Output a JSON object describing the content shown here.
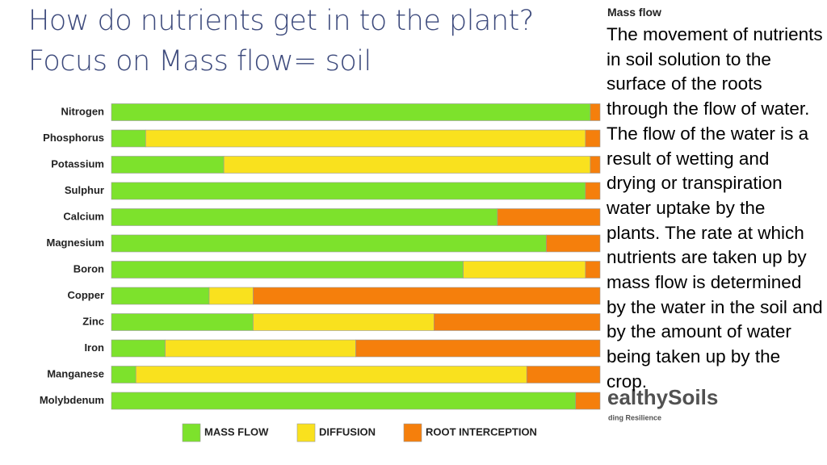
{
  "title_lines": [
    "How do nutrients get in to the plant?",
    "Focus on Mass flow= soil"
  ],
  "side_note": {
    "heading": "Mass flow",
    "text": "The movement of nutrients in soil solution to the surface of the roots through the flow of water. The flow of the water is a result of wetting and drying or transpiration water uptake by the plants. The rate at which nutrients are taken up by mass flow is determined by the water in the soil and by the amount of water being taken up by the crop."
  },
  "logo": {
    "name": "ealthySoils",
    "tagline": "ding Resilience"
  },
  "chart_data": {
    "type": "stacked_bar",
    "orientation": "horizontal",
    "categories": [
      "Nitrogen",
      "Phosphorus",
      "Potassium",
      "Sulphur",
      "Calcium",
      "Magnesium",
      "Boron",
      "Copper",
      "Zinc",
      "Iron",
      "Manganese",
      "Molybdenum"
    ],
    "series": [
      {
        "name": "MASS FLOW",
        "color": "#7de22c",
        "values": [
          98,
          7,
          23,
          97,
          79,
          89,
          72,
          20,
          29,
          11,
          5,
          95
        ]
      },
      {
        "name": "DIFFUSION",
        "color": "#f9e11e",
        "values": [
          0,
          90,
          75,
          0,
          0,
          0,
          25,
          9,
          37,
          39,
          80,
          0
        ]
      },
      {
        "name": "ROOT INTERCEPTION",
        "color": "#f57f0c",
        "values": [
          2,
          3,
          2,
          3,
          21,
          11,
          3,
          71,
          34,
          50,
          15,
          5
        ]
      }
    ],
    "xlim": [
      0,
      100
    ],
    "legend": "bottom"
  }
}
